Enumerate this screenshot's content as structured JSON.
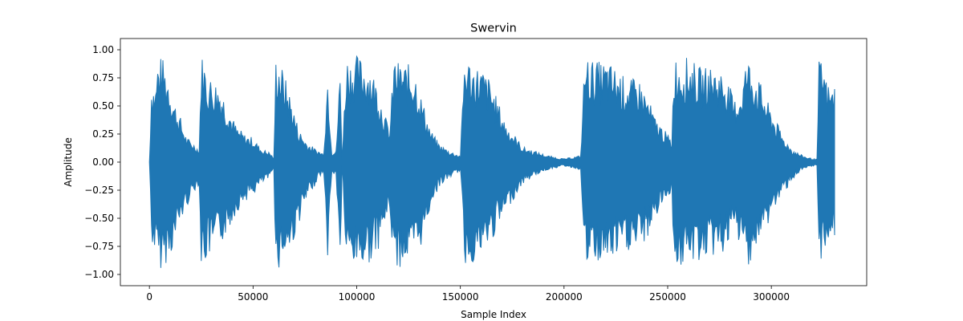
{
  "chart_data": {
    "type": "line",
    "title": "Swervin",
    "xlabel": "Sample Index",
    "ylabel": "Amplitude",
    "xlim": [
      -14000,
      346000
    ],
    "ylim": [
      -1.1,
      1.1
    ],
    "xticks": [
      0,
      50000,
      100000,
      150000,
      200000,
      250000,
      300000
    ],
    "xtick_labels": [
      "0",
      "50000",
      "100000",
      "150000",
      "200000",
      "250000",
      "300000"
    ],
    "yticks": [
      -1.0,
      -0.75,
      -0.5,
      -0.25,
      0.0,
      0.25,
      0.5,
      0.75,
      1.0
    ],
    "ytick_labels": [
      "−1.00",
      "−0.75",
      "−0.50",
      "−0.25",
      "0.00",
      "0.25",
      "0.50",
      "0.75",
      "1.00"
    ],
    "grid": false,
    "series": [
      {
        "color": "#1f77b4",
        "x": [
          0,
          1000,
          3000,
          4000,
          6000,
          9000,
          12000,
          15000,
          18000,
          21000,
          24000,
          25000,
          26000,
          28000,
          31000,
          34000,
          38000,
          42000,
          46000,
          50000,
          54000,
          58000,
          60000,
          61000,
          62000,
          64000,
          68000,
          72000,
          76000,
          80000,
          82000,
          84000,
          86000,
          88000,
          90000,
          92000,
          93000,
          95000,
          97000,
          99000,
          101000,
          103000,
          106000,
          110000,
          114000,
          116000,
          118000,
          120000,
          124000,
          128000,
          131000,
          134000,
          136000,
          140000,
          145000,
          150000,
          152000,
          153000,
          156000,
          160000,
          164000,
          168000,
          172000,
          176000,
          180000,
          186000,
          192000,
          200000,
          208000,
          210000,
          212000,
          216000,
          220000,
          224000,
          228000,
          232000,
          236000,
          240000,
          244000,
          248000,
          252000,
          253000,
          256000,
          260000,
          266000,
          272000,
          278000,
          282000,
          286000,
          288000,
          290000,
          294000,
          298000,
          302000,
          306000,
          310000,
          314000,
          318000,
          322000,
          323000,
          325000,
          327000,
          329000,
          330500
        ],
        "y_max": [
          0.0,
          0.74,
          0.7,
          0.92,
          0.95,
          0.8,
          0.55,
          0.4,
          0.22,
          0.18,
          0.12,
          0.95,
          0.96,
          0.78,
          0.75,
          0.7,
          0.5,
          0.32,
          0.25,
          0.22,
          0.12,
          0.09,
          0.04,
          0.95,
          0.96,
          0.85,
          0.6,
          0.3,
          0.18,
          0.12,
          0.1,
          0.08,
          0.82,
          0.1,
          0.1,
          0.85,
          0.03,
          0.97,
          0.93,
          0.96,
          0.95,
          0.92,
          0.9,
          0.7,
          0.4,
          0.3,
          0.95,
          0.9,
          0.88,
          0.85,
          0.6,
          0.4,
          0.28,
          0.16,
          0.1,
          0.06,
          0.96,
          0.95,
          0.88,
          0.85,
          0.75,
          0.55,
          0.35,
          0.25,
          0.14,
          0.1,
          0.06,
          0.03,
          0.06,
          0.95,
          0.92,
          0.9,
          0.9,
          0.86,
          0.78,
          0.74,
          0.75,
          0.6,
          0.4,
          0.3,
          0.2,
          0.95,
          0.92,
          0.94,
          0.84,
          0.86,
          0.8,
          0.55,
          0.7,
          0.95,
          0.9,
          0.74,
          0.55,
          0.38,
          0.22,
          0.12,
          0.07,
          0.04,
          0.025,
          0.91,
          0.9,
          0.7,
          0.68,
          0.65
        ],
        "y_min": [
          0.0,
          -0.72,
          -0.85,
          -0.97,
          -0.95,
          -0.88,
          -0.75,
          -0.55,
          -0.4,
          -0.28,
          -0.2,
          -0.97,
          -0.93,
          -0.88,
          -0.82,
          -0.75,
          -0.62,
          -0.45,
          -0.35,
          -0.3,
          -0.2,
          -0.15,
          -0.05,
          -0.99,
          -0.97,
          -0.9,
          -0.8,
          -0.55,
          -0.35,
          -0.2,
          -0.13,
          -0.1,
          -0.85,
          -0.12,
          -0.1,
          -0.99,
          -0.03,
          -0.97,
          -0.92,
          -0.96,
          -0.9,
          -0.95,
          -0.9,
          -0.8,
          -0.55,
          -0.45,
          -0.96,
          -0.95,
          -0.9,
          -0.88,
          -0.75,
          -0.55,
          -0.36,
          -0.22,
          -0.14,
          -0.08,
          -0.93,
          -0.93,
          -0.9,
          -0.86,
          -0.75,
          -0.6,
          -0.45,
          -0.32,
          -0.2,
          -0.12,
          -0.07,
          -0.035,
          -0.07,
          -0.96,
          -0.92,
          -0.92,
          -0.9,
          -0.88,
          -0.82,
          -0.8,
          -0.78,
          -0.7,
          -0.5,
          -0.38,
          -0.25,
          -0.97,
          -0.95,
          -0.93,
          -0.88,
          -0.85,
          -0.8,
          -0.65,
          -0.78,
          -0.95,
          -0.88,
          -0.75,
          -0.58,
          -0.4,
          -0.28,
          -0.16,
          -0.09,
          -0.05,
          -0.03,
          -0.88,
          -0.86,
          -0.72,
          -0.68,
          -0.65
        ]
      }
    ]
  }
}
